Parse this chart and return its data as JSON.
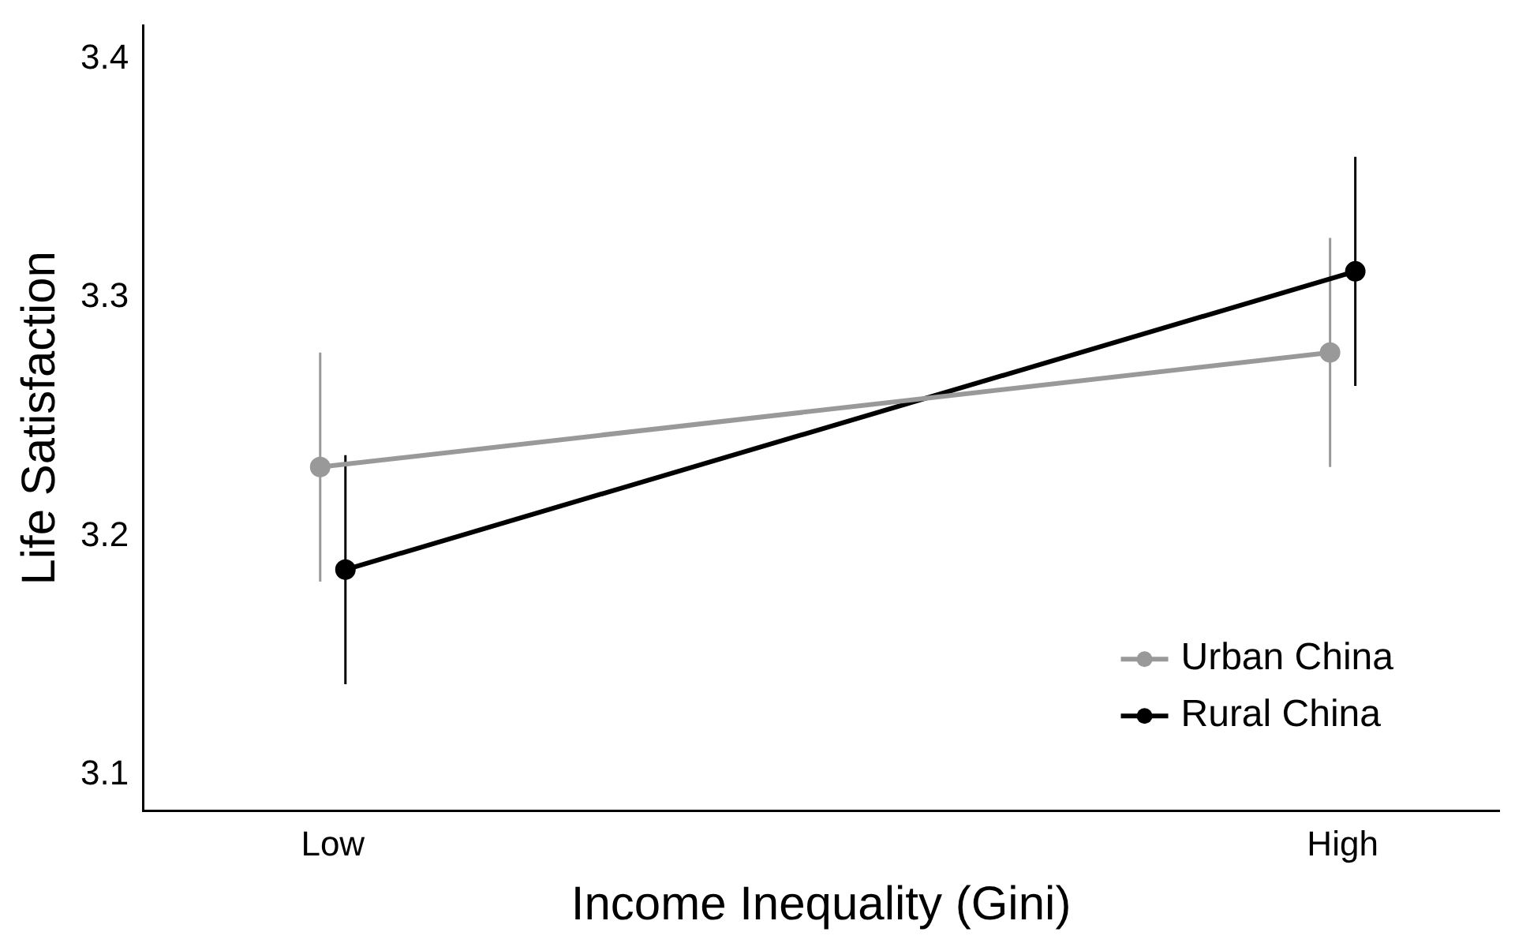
{
  "chart_data": {
    "type": "line",
    "xlabel": "Income Inequality (Gini)",
    "ylabel": "Life Satisfaction",
    "categories": [
      "Low",
      "High"
    ],
    "series": [
      {
        "name": "Urban China",
        "color": "#999999",
        "values": [
          3.229,
          3.277
        ],
        "errors": [
          0.048,
          0.048
        ]
      },
      {
        "name": "Rural China",
        "color": "#000000",
        "values": [
          3.186,
          3.311
        ],
        "errors": [
          0.048,
          0.048
        ]
      }
    ],
    "ylim": [
      3.085,
      3.414
    ],
    "yticks": [
      3.1,
      3.2,
      3.3,
      3.4
    ],
    "grid": false,
    "legend": "bottom right",
    "marker": "circle",
    "line_style": "solid"
  }
}
